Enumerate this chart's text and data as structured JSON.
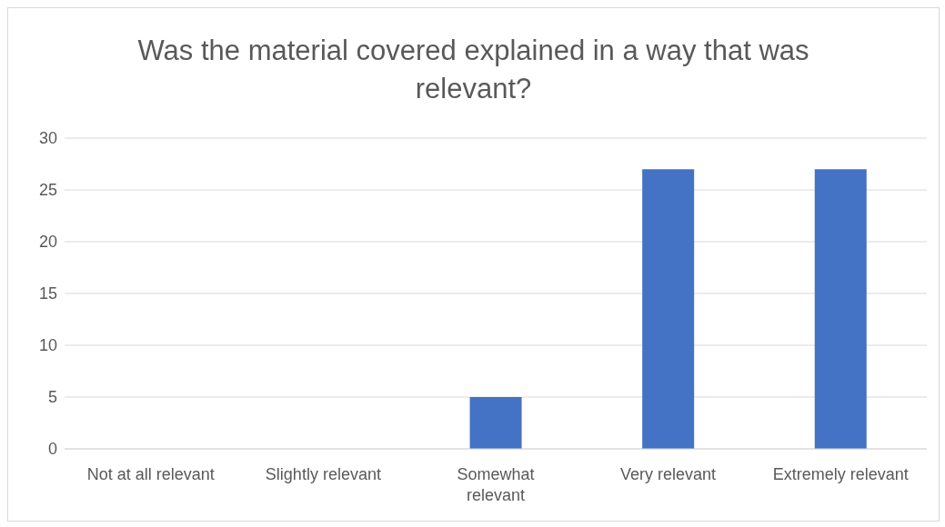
{
  "chart_data": {
    "type": "bar",
    "title": "Was the material covered explained in a way that was relevant?",
    "categories": [
      "Not at all relevant",
      "Slightly relevant",
      "Somewhat\nrelevant",
      "Very relevant",
      "Extremely relevant"
    ],
    "values": [
      0,
      0,
      5,
      27,
      27
    ],
    "color": "#4472c4",
    "ylim": [
      0,
      30
    ],
    "yticks": [
      0,
      5,
      10,
      15,
      20,
      25,
      30
    ],
    "grid": "y",
    "legend": false
  }
}
